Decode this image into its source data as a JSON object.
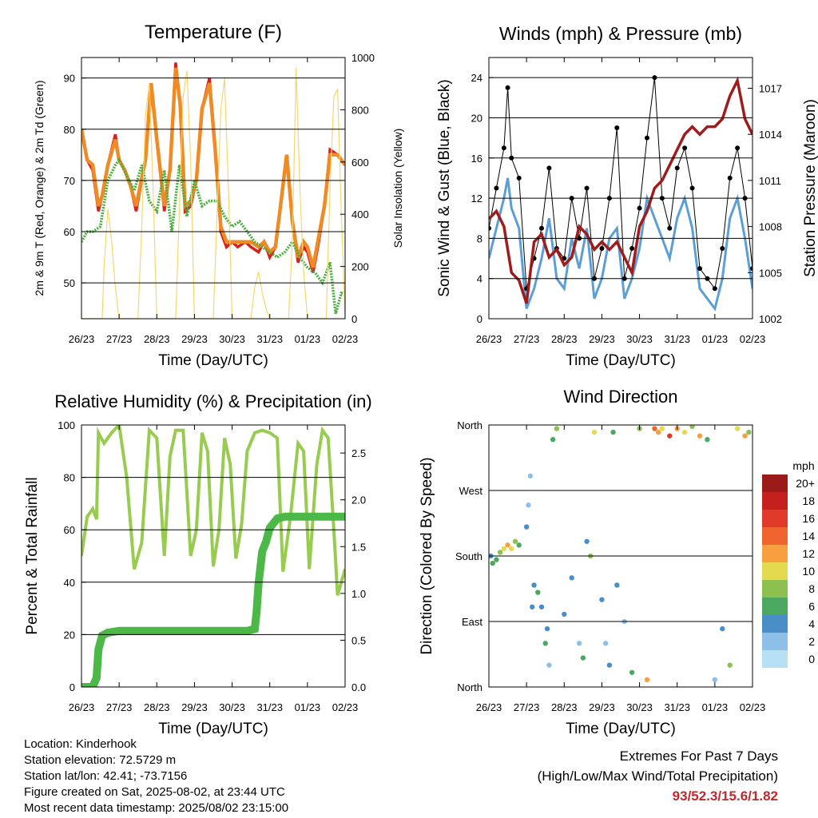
{
  "colors": {
    "temp_red": "#d62020",
    "temp_orange": "#f08a24",
    "dewpoint": "#4aae3c",
    "solar": "#f5d76e",
    "wind": "#5b9fd6",
    "gust": "#000000",
    "pressure": "#a01c1c",
    "rh": "#98cc50",
    "precip": "#4cb848",
    "extremes": "#c0282d"
  },
  "chart_data": [
    {
      "id": "temperature",
      "type": "line",
      "title": "Temperature (F)",
      "xlabel": "Time (Day/UTC)",
      "ylabel": "2m & 9m T (Red, Orange) & 2m Td (Green)",
      "ylabel_right": "Solar Insolation (Yellow)",
      "x_ticks": [
        "26/23",
        "27/23",
        "28/23",
        "29/23",
        "30/23",
        "31/23",
        "01/23",
        "02/23"
      ],
      "xlim": [
        0,
        7
      ],
      "ylim": [
        43,
        94
      ],
      "y_ticks": [
        50,
        60,
        70,
        80,
        90
      ],
      "ylim_right": [
        0,
        1000
      ],
      "y_ticks_right": [
        0,
        200,
        400,
        600,
        800,
        1000
      ],
      "grid": "horizontal",
      "series": [
        {
          "id": "t2m",
          "x": [
            0,
            0.15,
            0.3,
            0.45,
            0.55,
            0.7,
            0.9,
            1.0,
            1.15,
            1.3,
            1.45,
            1.7,
            1.85,
            2.0,
            2.2,
            2.35,
            2.5,
            2.62,
            2.75,
            2.9,
            3.05,
            3.2,
            3.4,
            3.55,
            3.7,
            3.85,
            4.0,
            4.15,
            4.35,
            4.5,
            4.7,
            4.85,
            5.0,
            5.15,
            5.3,
            5.45,
            5.6,
            5.75,
            5.9,
            6.0,
            6.15,
            6.3,
            6.45,
            6.6,
            6.8,
            6.9,
            7.0
          ],
          "y": [
            80,
            74,
            72,
            64,
            67,
            73,
            79,
            74,
            72,
            69,
            64,
            74,
            88,
            78,
            64,
            72,
            93,
            85,
            64,
            65,
            70,
            84,
            90,
            76,
            60,
            57,
            58,
            57,
            58,
            57,
            56,
            58,
            55,
            57,
            66,
            75,
            62,
            54,
            57,
            56,
            52,
            58,
            65,
            76,
            75,
            74,
            73
          ]
        },
        {
          "id": "t9m",
          "x": [
            0,
            0.15,
            0.3,
            0.45,
            0.55,
            0.7,
            0.9,
            1.0,
            1.15,
            1.3,
            1.45,
            1.7,
            1.85,
            2.0,
            2.2,
            2.35,
            2.5,
            2.62,
            2.75,
            2.9,
            3.05,
            3.2,
            3.4,
            3.55,
            3.7,
            3.85,
            4.0,
            4.15,
            4.35,
            4.5,
            4.7,
            4.85,
            5.0,
            5.15,
            5.3,
            5.45,
            5.6,
            5.75,
            5.9,
            6.0,
            6.15,
            6.3,
            6.45,
            6.6,
            6.8,
            6.9,
            7.0
          ],
          "y": [
            80,
            74,
            73,
            65,
            67,
            73,
            78,
            74,
            72,
            69,
            65,
            74,
            89,
            78,
            65,
            72,
            92,
            85,
            65,
            66,
            70,
            84,
            89,
            76,
            61,
            58,
            58,
            58,
            58,
            58,
            57,
            58,
            56,
            57,
            66,
            75,
            62,
            55,
            58,
            57,
            53,
            59,
            65,
            75,
            75,
            74,
            73
          ]
        },
        {
          "id": "td2m",
          "x": [
            0,
            0.15,
            0.3,
            0.5,
            0.7,
            0.9,
            1.0,
            1.2,
            1.4,
            1.6,
            1.8,
            2.0,
            2.2,
            2.4,
            2.6,
            2.8,
            3.0,
            3.2,
            3.4,
            3.6,
            3.8,
            4.0,
            4.2,
            4.4,
            4.6,
            4.8,
            5.0,
            5.2,
            5.4,
            5.6,
            5.8,
            6.0,
            6.2,
            6.4,
            6.6,
            6.75,
            6.9,
            7.0
          ],
          "y": [
            58,
            60,
            60,
            61,
            70,
            73,
            74,
            71,
            68,
            73,
            66,
            64,
            72,
            60,
            73,
            63,
            70,
            65,
            66,
            66,
            63,
            61,
            62,
            60,
            58,
            57,
            56,
            55,
            56,
            58,
            55,
            53,
            52,
            50,
            54,
            44,
            48,
            48
          ]
        },
        {
          "id": "solar",
          "x": [
            0,
            0.55,
            0.6,
            0.7,
            0.8,
            0.9,
            1.0,
            1.5,
            1.6,
            1.7,
            1.8,
            1.9,
            2.0,
            2.5,
            2.6,
            2.7,
            2.8,
            2.9,
            3.0,
            3.5,
            3.6,
            3.7,
            3.8,
            3.9,
            4.0,
            4.5,
            4.6,
            4.7,
            4.8,
            4.9,
            5.0,
            5.5,
            5.6,
            5.7,
            5.8,
            5.9,
            6.0,
            6.5,
            6.6,
            6.7,
            6.8,
            6.9,
            7.0
          ],
          "y": [
            0,
            0,
            200,
            420,
            300,
            120,
            0,
            0,
            350,
            780,
            900,
            500,
            0,
            0,
            420,
            850,
            950,
            600,
            0,
            0,
            400,
            800,
            920,
            500,
            0,
            0,
            120,
            180,
            100,
            40,
            0,
            0,
            300,
            960,
            500,
            180,
            0,
            0,
            500,
            850,
            880,
            400,
            0
          ]
        }
      ]
    },
    {
      "id": "winds",
      "type": "line",
      "title": "Winds (mph) & Pressure (mb)",
      "xlabel": "Time (Day/UTC)",
      "ylabel": "Sonic Wind & Gust (Blue, Black)",
      "ylabel_right": "Station Pressure (Maroon)",
      "x_ticks": [
        "26/23",
        "27/23",
        "28/23",
        "29/23",
        "30/23",
        "31/23",
        "01/23",
        "02/23"
      ],
      "xlim": [
        0,
        7
      ],
      "ylim": [
        0,
        26
      ],
      "y_ticks": [
        0,
        4,
        8,
        12,
        16,
        20,
        24
      ],
      "ylim_right": [
        1002,
        1019
      ],
      "y_ticks_right": [
        1002,
        1005,
        1008,
        1011,
        1014,
        1017
      ],
      "grid": "horizontal",
      "series": [
        {
          "id": "wind",
          "x": [
            0,
            0.2,
            0.4,
            0.5,
            0.6,
            0.8,
            1.0,
            1.2,
            1.4,
            1.6,
            1.8,
            2.0,
            2.2,
            2.4,
            2.6,
            2.8,
            3.0,
            3.2,
            3.4,
            3.6,
            3.8,
            4.0,
            4.2,
            4.4,
            4.6,
            4.8,
            5.0,
            5.2,
            5.4,
            5.6,
            5.8,
            6.0,
            6.2,
            6.4,
            6.6,
            6.8,
            7.0
          ],
          "y": [
            6,
            9,
            12,
            14,
            11,
            9,
            1,
            3,
            6,
            10,
            4,
            3,
            8,
            5,
            9,
            2,
            4,
            8,
            9,
            2,
            4,
            7,
            12,
            10,
            8,
            6,
            10,
            12,
            9,
            3,
            2,
            1,
            4,
            10,
            12,
            8,
            3
          ]
        },
        {
          "id": "gust",
          "x": [
            0,
            0.2,
            0.4,
            0.5,
            0.6,
            0.8,
            1.0,
            1.2,
            1.4,
            1.6,
            1.8,
            2.0,
            2.2,
            2.4,
            2.6,
            2.8,
            3.0,
            3.2,
            3.4,
            3.6,
            3.8,
            4.0,
            4.2,
            4.4,
            4.6,
            4.8,
            5.0,
            5.2,
            5.4,
            5.6,
            5.8,
            6.0,
            6.2,
            6.4,
            6.6,
            6.8,
            7.0
          ],
          "y": [
            9,
            13,
            17,
            23,
            16,
            14,
            3,
            6,
            9,
            15,
            7,
            6,
            12,
            8,
            13,
            4,
            7,
            12,
            19,
            4,
            7,
            11,
            18,
            24,
            12,
            9,
            15,
            17,
            13,
            5,
            4,
            3,
            7,
            14,
            17,
            12,
            5
          ]
        },
        {
          "id": "pressure",
          "x": [
            0,
            0.2,
            0.4,
            0.6,
            0.8,
            1.0,
            1.2,
            1.4,
            1.6,
            1.8,
            2.0,
            2.2,
            2.4,
            2.6,
            2.8,
            3.0,
            3.2,
            3.4,
            3.6,
            3.8,
            4.0,
            4.2,
            4.4,
            4.6,
            4.8,
            5.0,
            5.2,
            5.4,
            5.6,
            5.8,
            6.0,
            6.2,
            6.4,
            6.6,
            6.8,
            7.0
          ],
          "y": [
            1008.5,
            1009,
            1008,
            1005,
            1004.5,
            1003,
            1007,
            1007.5,
            1006,
            1006.5,
            1005.5,
            1006,
            1008,
            1007.5,
            1006.5,
            1007,
            1006.5,
            1007,
            1006,
            1005,
            1008,
            1009,
            1010.5,
            1011,
            1012,
            1013,
            1014,
            1014.5,
            1014,
            1014.5,
            1014.5,
            1015,
            1016.5,
            1017.5,
            1015,
            1014
          ]
        }
      ]
    },
    {
      "id": "humidity",
      "type": "line",
      "title": "Relative Humidity (%) & Precipitation (in)",
      "xlabel": "Time (Day/UTC)",
      "ylabel": "Percent & Total Rainfall",
      "x_ticks": [
        "26/23",
        "27/23",
        "28/23",
        "29/23",
        "30/23",
        "31/23",
        "01/23",
        "02/23"
      ],
      "xlim": [
        0,
        7
      ],
      "ylim": [
        0,
        100
      ],
      "y_ticks": [
        0,
        20,
        40,
        60,
        80,
        100
      ],
      "ylim_right": [
        0,
        2.8
      ],
      "y_ticks_right": [
        "0.0",
        "0.5",
        "1.0",
        "1.5",
        "2.0",
        "2.5"
      ],
      "grid": "horizontal",
      "series": [
        {
          "id": "rh",
          "x": [
            0,
            0.15,
            0.3,
            0.4,
            0.45,
            0.6,
            0.8,
            1.0,
            1.2,
            1.4,
            1.6,
            1.8,
            2.0,
            2.2,
            2.35,
            2.5,
            2.7,
            2.9,
            3.05,
            3.2,
            3.35,
            3.5,
            3.65,
            3.8,
            3.95,
            4.1,
            4.25,
            4.4,
            4.6,
            4.8,
            5.0,
            5.2,
            5.35,
            5.55,
            5.75,
            5.9,
            6.05,
            6.25,
            6.4,
            6.55,
            6.7,
            6.8,
            6.9,
            7.0
          ],
          "y": [
            50,
            65,
            68,
            64,
            97,
            93,
            97,
            100,
            80,
            45,
            55,
            98,
            95,
            50,
            88,
            98,
            98,
            50,
            60,
            97,
            90,
            46,
            60,
            95,
            85,
            49,
            62,
            90,
            97,
            98,
            97,
            95,
            44,
            65,
            93,
            90,
            45,
            85,
            98,
            95,
            60,
            35,
            40,
            45
          ]
        },
        {
          "id": "precip",
          "x": [
            0,
            0.1,
            0.3,
            0.4,
            0.45,
            0.55,
            0.7,
            1.0,
            2.0,
            3.0,
            4.0,
            4.4,
            4.6,
            4.65,
            4.7,
            4.8,
            4.9,
            5.0,
            5.1,
            5.2,
            5.4,
            6.0,
            7.0
          ],
          "y": [
            0,
            0,
            0,
            0.1,
            0.4,
            0.55,
            0.58,
            0.6,
            0.6,
            0.6,
            0.6,
            0.6,
            0.62,
            0.8,
            1.1,
            1.45,
            1.55,
            1.7,
            1.75,
            1.8,
            1.82,
            1.82,
            1.82
          ]
        }
      ]
    },
    {
      "id": "wind_direction",
      "type": "scatter",
      "title": "Wind Direction",
      "xlabel": "Time (Day/UTC)",
      "ylabel": "Direction (Colored By Speed)",
      "x_ticks": [
        "26/23",
        "27/23",
        "28/23",
        "29/23",
        "30/23",
        "31/23",
        "01/23",
        "02/23"
      ],
      "xlim": [
        0,
        7
      ],
      "ylim": [
        0,
        360
      ],
      "y_ticks": [
        "North",
        "East",
        "South",
        "West",
        "North"
      ],
      "grid": "horizontal",
      "colorbar": {
        "title": "mph",
        "labels": [
          "20+",
          "18",
          "16",
          "14",
          "12",
          "10",
          "8",
          "6",
          "4",
          "2",
          "0"
        ],
        "colors": [
          "#9b1b1b",
          "#c4201e",
          "#e03a2a",
          "#f06430",
          "#f8a040",
          "#e4da50",
          "#8cc050",
          "#4aa860",
          "#4a8ec8",
          "#8cc0e8",
          "#b8e0f5"
        ]
      },
      "series": [
        {
          "id": "direction",
          "x": [
            0.05,
            0.1,
            0.2,
            0.3,
            0.4,
            0.5,
            0.6,
            0.7,
            0.8,
            1.0,
            1.05,
            1.1,
            1.15,
            1.2,
            1.3,
            1.4,
            1.5,
            1.55,
            1.6,
            1.7,
            1.8,
            2.0,
            2.2,
            2.4,
            2.5,
            2.6,
            2.7,
            2.8,
            3.0,
            3.1,
            3.2,
            3.3,
            3.4,
            3.6,
            3.8,
            4.0,
            4.2,
            4.4,
            4.5,
            4.6,
            4.8,
            5.0,
            5.2,
            5.4,
            5.6,
            5.8,
            6.0,
            6.2,
            6.4,
            6.6,
            6.8,
            6.9
          ],
          "y": [
            180,
            170,
            175,
            185,
            190,
            195,
            190,
            200,
            195,
            220,
            250,
            290,
            110,
            140,
            130,
            110,
            60,
            80,
            30,
            340,
            355,
            100,
            150,
            60,
            40,
            200,
            180,
            350,
            120,
            60,
            30,
            350,
            140,
            90,
            20,
            355,
            10,
            355,
            350,
            355,
            345,
            355,
            350,
            358,
            345,
            340,
            10,
            80,
            30,
            355,
            345,
            350
          ],
          "speed": [
            4,
            5,
            6,
            8,
            10,
            12,
            10,
            8,
            6,
            3,
            2,
            2,
            3,
            4,
            5,
            4,
            6,
            3,
            2,
            5,
            8,
            4,
            3,
            2,
            6,
            4,
            8,
            10,
            3,
            2,
            4,
            6,
            4,
            2,
            5,
            8,
            12,
            14,
            12,
            10,
            16,
            12,
            10,
            8,
            12,
            6,
            2,
            4,
            8,
            10,
            12,
            8
          ]
        }
      ]
    }
  ],
  "footer": {
    "location": "Location: Kinderhook",
    "elevation": "Station elevation: 72.5729 m",
    "latlon": "Station lat/lon: 42.41; -73.7156",
    "created": "Figure created on Sat, 2025-08-02, at 23:44 UTC",
    "recent": "Most recent data timestamp: 2025/08/02 23:15:00",
    "extremes_title": "Extremes For Past 7 Days",
    "extremes_subtitle": "(High/Low/Max Wind/Total Precipitation)",
    "extremes_values": "93/52.3/15.6/1.82"
  }
}
